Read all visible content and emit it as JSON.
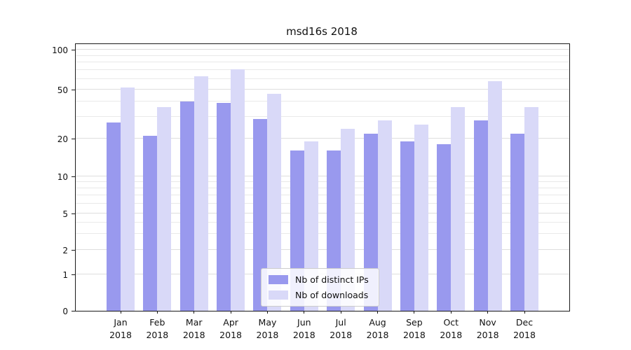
{
  "chart_data": {
    "type": "bar",
    "title": "msd16s 2018",
    "categories": [
      "Jan",
      "Feb",
      "Mar",
      "Apr",
      "May",
      "Jun",
      "Jul",
      "Aug",
      "Sep",
      "Oct",
      "Nov",
      "Dec"
    ],
    "x_year": "2018",
    "series": [
      {
        "name": "Nb of distinct IPs",
        "color": "#9999ee",
        "values": [
          27,
          21,
          40,
          39,
          29,
          16,
          16,
          22,
          19,
          18,
          28,
          22
        ]
      },
      {
        "name": "Nb of downloads",
        "color": "#d9d9f8",
        "values": [
          52,
          36,
          63,
          71,
          46,
          19,
          24,
          28,
          26,
          36,
          58,
          36
        ]
      }
    ],
    "y_scale": "symlog",
    "y_ticks": [
      0,
      1,
      2,
      5,
      10,
      20,
      50,
      100
    ],
    "y_minor_gridlines": [
      3,
      4,
      6,
      7,
      8,
      9,
      30,
      40,
      60,
      70,
      80,
      90
    ],
    "ylim": [
      0,
      100
    ],
    "grid": "horizontal",
    "legend_position": "lower center",
    "axis_color": "#1a1a1a",
    "gridline_color": "#e9e9e9"
  }
}
